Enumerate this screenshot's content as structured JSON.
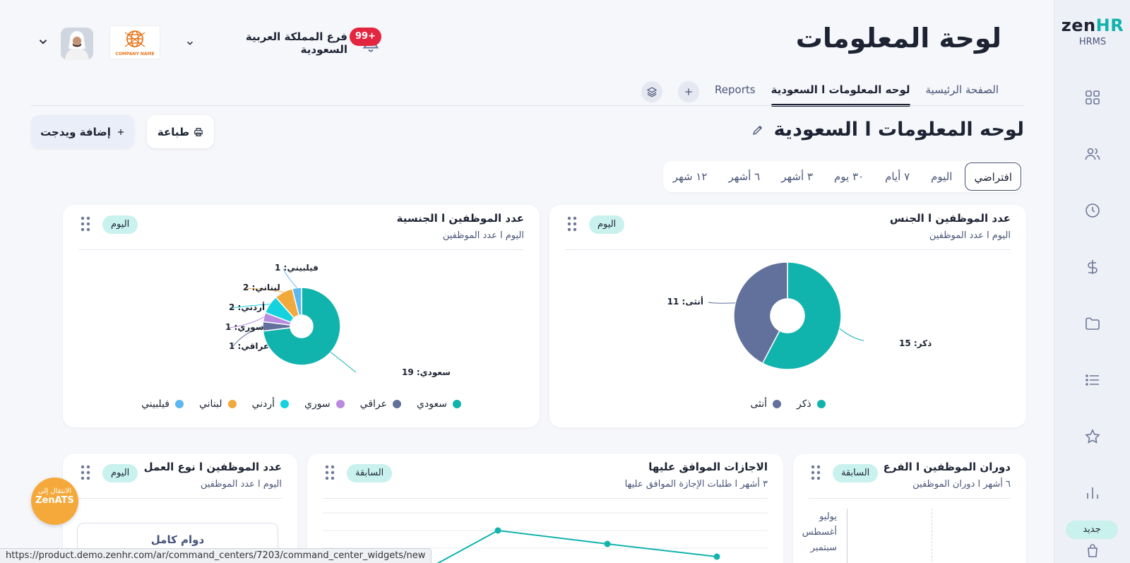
{
  "sidebar": {
    "brand_logo": "zenHR",
    "brand_logo_accent": "HR",
    "brand_logo_main": "zen",
    "brand_sub": "HRMS",
    "icons": [
      "grid-icon",
      "users-icon",
      "clock-icon",
      "dollar-icon",
      "folder-icon",
      "list-icon",
      "star-icon",
      "bar-chart-icon",
      "bag-icon"
    ],
    "new_badge": "جديد"
  },
  "header": {
    "title": "لوحة المعلومات",
    "notifications": "99+",
    "branch": "فرع المملكة العربية السعودية",
    "company_logo_text": "COMPANY NAME"
  },
  "tabs": [
    {
      "label": "الصفحة الرئيسية"
    },
    {
      "label": "لوحه المعلومات ا السعودية"
    },
    {
      "label": "Reports"
    }
  ],
  "dashboard": {
    "title": "لوحه المعلومات ا السعودية",
    "add_widget": "إضافة ويدجت",
    "print": "طباعة",
    "periods": [
      "افتراضي",
      "اليوم",
      "٧ أيام",
      "٣٠ يوم",
      "٣ أشهر",
      "٦ أشهر",
      "١٢ شهر"
    ],
    "active_period": "افتراضي"
  },
  "cards": {
    "gender": {
      "title": "عدد الموظفين ا الجنس",
      "subtitle": "اليوم ا عدد الموظفين",
      "badge": "اليوم"
    },
    "nationality": {
      "title": "عدد الموظفين ا الجنسية",
      "subtitle": "اليوم ا عدد الموظفين",
      "badge": "اليوم"
    },
    "turnover": {
      "title": "دوران الموظفين ا الفرع",
      "subtitle": "٦ أشهر ا دوران الموظفين",
      "badge": "السابقة",
      "months": [
        "يوليو",
        "أغسطس",
        "سبتمبر"
      ]
    },
    "leaves": {
      "title": "الاجازات الموافق عليها",
      "subtitle": "٣ أشهر ا طلبات الإجازة الموافق عليها",
      "badge": "السابقة"
    },
    "work_type": {
      "title": "عدد الموظفين ا نوع العمل",
      "subtitle": "اليوم ا عدد الموظفين",
      "badge": "اليوم",
      "item": "دوام كامل"
    }
  },
  "chart_data": [
    {
      "type": "pie",
      "title": "عدد الموظفين ا الجنس",
      "categories": [
        "ذكر",
        "أنثى"
      ],
      "values": [
        15,
        11
      ],
      "colors": [
        "#11b3ad",
        "#62719c"
      ],
      "labels": [
        "ذكر: 15",
        "أنثى: 11"
      ],
      "legend": [
        "ذكر",
        "أنثى"
      ],
      "legend_position": "bottom"
    },
    {
      "type": "pie",
      "title": "عدد الموظفين ا الجنسية",
      "categories": [
        "سعودي",
        "عراقي",
        "سوري",
        "أردني",
        "لبناني",
        "فيلبيني"
      ],
      "values": [
        19,
        1,
        1,
        2,
        2,
        1
      ],
      "colors": [
        "#11b3ad",
        "#62719c",
        "#b98be0",
        "#14d2de",
        "#f2a93b",
        "#5cb8f0"
      ],
      "labels": [
        "سعودي: 19",
        "عراقي: 1",
        "سوري: 1",
        "أردني: 2",
        "لبناني: 2",
        "فيلبيني: 1"
      ],
      "legend": [
        "سعودي",
        "عراقي",
        "سوري",
        "أردني",
        "لبناني",
        "فيلبيني"
      ],
      "legend_position": "bottom"
    }
  ],
  "floating": {
    "zenats_line1": "الانتقال إلى",
    "zenats_line2": "ZenATS"
  },
  "status_url": "https://product.demo.zenhr.com/ar/command_centers/7203/command_center_widgets/new"
}
